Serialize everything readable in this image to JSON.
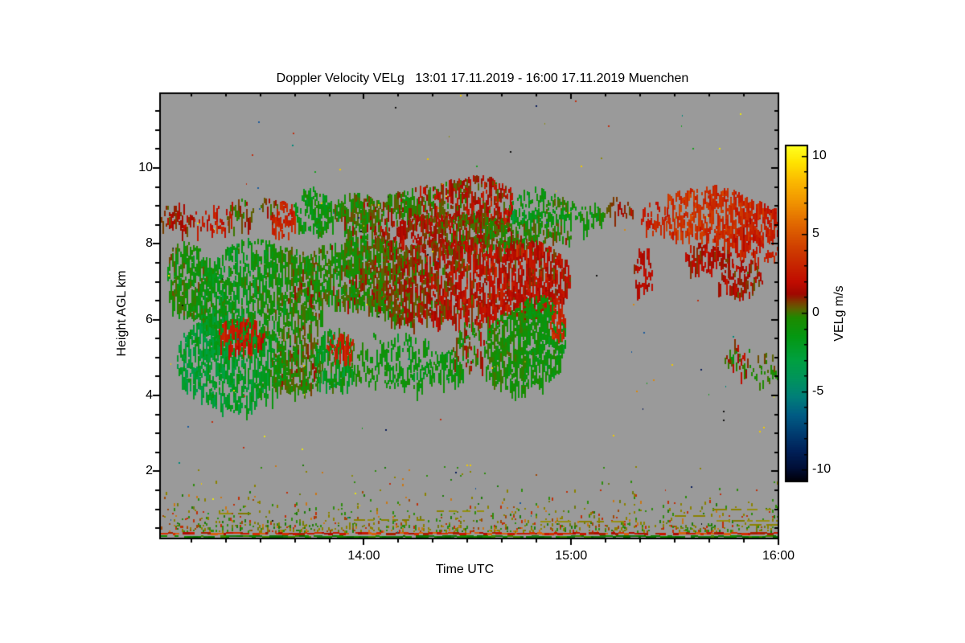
{
  "title": "Doppler Velocity VELg   13:01 17.11.2019 - 16:00 17.11.2019 Muenchen",
  "chart_data": {
    "type": "heatmap",
    "title": "Doppler Velocity VELg   13:01 17.11.2019 - 16:00 17.11.2019 Muenchen",
    "site": "Muenchen",
    "time_span": "13:01 17.11.2019 - 16:00 17.11.2019",
    "xlabel": "Time UTC",
    "ylabel": "Height AGL km",
    "x_range_hours": [
      13.0167,
      16.0
    ],
    "x_ticks": [
      {
        "hour": 14,
        "label": "14:00"
      },
      {
        "hour": 15,
        "label": "15:00"
      },
      {
        "hour": 16,
        "label": "16:00"
      }
    ],
    "x_minor_step_min": 10,
    "y_range_km": [
      0.25,
      11.95
    ],
    "y_ticks": [
      {
        "km": 2,
        "label": "2"
      },
      {
        "km": 4,
        "label": "4"
      },
      {
        "km": 6,
        "label": "6"
      },
      {
        "km": 8,
        "label": "8"
      },
      {
        "km": 10,
        "label": "10"
      }
    ],
    "y_minor_step_km": 0.5,
    "grid": false,
    "background_color": "#9A9A9A",
    "colorbar": {
      "label": "VELg m/s",
      "vmin": -10.7,
      "vmax": 10.6,
      "ticks": [
        {
          "v": 10,
          "label": "10"
        },
        {
          "v": 5,
          "label": "5"
        },
        {
          "v": 0,
          "label": "0"
        },
        {
          "v": -5,
          "label": "-5"
        },
        {
          "v": -10,
          "label": "-10"
        }
      ],
      "minor_step": 1,
      "stops": [
        [
          10.6,
          "#FFFF1E"
        ],
        [
          9.6,
          "#FFE400"
        ],
        [
          8.4,
          "#FBB900"
        ],
        [
          7.0,
          "#F09200"
        ],
        [
          5.6,
          "#E06600"
        ],
        [
          4.2,
          "#D04000"
        ],
        [
          3.0,
          "#C62400"
        ],
        [
          2.0,
          "#C00C00"
        ],
        [
          1.2,
          "#A00800"
        ],
        [
          0.7,
          "#7C3C00"
        ],
        [
          0.25,
          "#5A6400"
        ],
        [
          -0.3,
          "#1E8A00"
        ],
        [
          -1.5,
          "#049812"
        ],
        [
          -3.0,
          "#00A040"
        ],
        [
          -4.3,
          "#00925E"
        ],
        [
          -5.3,
          "#008078"
        ],
        [
          -6.5,
          "#005C84"
        ],
        [
          -7.7,
          "#003C70"
        ],
        [
          -8.8,
          "#002058"
        ],
        [
          -9.9,
          "#000E36"
        ],
        [
          -10.7,
          "#000008"
        ]
      ]
    },
    "cloud_regions": [
      {
        "t0": 13.02,
        "t1": 13.18,
        "h0": 8.35,
        "h1": 9.1,
        "v": 2.0,
        "sd": 1.0,
        "d": 0.45,
        "slope": 0
      },
      {
        "t0": 13.18,
        "t1": 13.36,
        "h0": 8.35,
        "h1": 8.95,
        "v": 1.5,
        "sd": 1.2,
        "d": 0.35,
        "slope": 0
      },
      {
        "t0": 13.34,
        "t1": 13.47,
        "h0": 8.45,
        "h1": 9.25,
        "v": 0.6,
        "sd": 1.5,
        "d": 0.5,
        "slope": 0
      },
      {
        "t0": 13.5,
        "t1": 13.58,
        "h0": 8.8,
        "h1": 9.3,
        "v": 1.0,
        "sd": 1.2,
        "d": 0.35,
        "slope": 0
      },
      {
        "t0": 13.55,
        "t1": 13.67,
        "h0": 8.35,
        "h1": 9.2,
        "v": 2.9,
        "sd": 0.8,
        "d": 0.75,
        "slope": 0
      },
      {
        "t0": 13.66,
        "t1": 13.85,
        "h0": 8.35,
        "h1": 9.4,
        "v": -0.9,
        "sd": 1.2,
        "d": 0.65,
        "slope": 0
      },
      {
        "t0": 13.85,
        "t1": 14.12,
        "h0": 8.3,
        "h1": 9.4,
        "v": 0.6,
        "sd": 1.5,
        "d": 0.7,
        "slope": 0
      },
      {
        "t0": 14.1,
        "t1": 14.72,
        "h0": 8.55,
        "h1": 9.68,
        "v": 0.0,
        "sd": 1.7,
        "d": 0.85,
        "slope": 0
      },
      {
        "t0": 14.05,
        "t1": 15.0,
        "h0": 7.9,
        "h1": 8.8,
        "v": 0.8,
        "sd": 1.4,
        "d": 0.82,
        "slope": 0
      },
      {
        "t0": 14.7,
        "t1": 15.02,
        "h0": 8.5,
        "h1": 9.45,
        "v": -0.4,
        "sd": 1.5,
        "d": 0.7,
        "slope": 0
      },
      {
        "t0": 15.02,
        "t1": 15.16,
        "h0": 8.45,
        "h1": 9.25,
        "v": -0.5,
        "sd": 1.3,
        "d": 0.4,
        "slope": 0
      },
      {
        "t0": 15.17,
        "t1": 15.3,
        "h0": 8.75,
        "h1": 9.25,
        "v": 1.3,
        "sd": 0.9,
        "d": 0.18,
        "slope": 0
      },
      {
        "t0": 15.33,
        "t1": 15.47,
        "h0": 8.3,
        "h1": 9.25,
        "v": 2.0,
        "sd": 1.1,
        "d": 0.45,
        "slope": 0
      },
      {
        "t0": 15.45,
        "t1": 16.0,
        "h0": 8.0,
        "h1": 9.5,
        "v": 2.6,
        "sd": 1.2,
        "d": 0.9,
        "slope": 0
      },
      {
        "t0": 15.55,
        "t1": 15.78,
        "h0": 7.4,
        "h1": 8.1,
        "v": 2.2,
        "sd": 1.0,
        "d": 0.5,
        "slope": 0
      },
      {
        "t0": 15.8,
        "t1": 16.0,
        "h0": 7.55,
        "h1": 8.15,
        "v": 2.0,
        "sd": 1.0,
        "d": 0.45,
        "slope": 0
      },
      {
        "t0": 15.7,
        "t1": 15.92,
        "h0": 6.7,
        "h1": 7.65,
        "v": 1.2,
        "sd": 1.0,
        "d": 0.5,
        "slope": 0
      },
      {
        "t0": 13.05,
        "t1": 13.34,
        "h0": 6.4,
        "h1": 8.3,
        "v": -0.3,
        "sd": 1.3,
        "d": 0.6,
        "slope": -0.9
      },
      {
        "t0": 13.2,
        "t1": 13.8,
        "h0": 5.3,
        "h1": 7.9,
        "v": -0.4,
        "sd": 1.4,
        "d": 0.8,
        "slope": 0
      },
      {
        "t0": 13.72,
        "t1": 15.0,
        "h0": 6.1,
        "h1": 8.25,
        "v": 0.7,
        "sd": 1.5,
        "d": 0.92,
        "slope": 0
      },
      {
        "t0": 14.58,
        "t1": 14.97,
        "h0": 4.1,
        "h1": 6.6,
        "v": -1.2,
        "sd": 1.0,
        "d": 0.7,
        "slope": 0
      },
      {
        "t0": 14.9,
        "t1": 14.97,
        "h0": 5.4,
        "h1": 6.4,
        "v": 2.6,
        "sd": 0.8,
        "d": 0.5,
        "slope": 0
      },
      {
        "t0": 15.3,
        "t1": 15.39,
        "h0": 6.8,
        "h1": 7.85,
        "v": 0.9,
        "sd": 0.8,
        "d": 0.55,
        "slope": 0
      },
      {
        "t0": 13.1,
        "t1": 13.62,
        "h0": 3.85,
        "h1": 6.1,
        "v": -1.6,
        "sd": 1.2,
        "d": 0.85,
        "slope": 0
      },
      {
        "t0": 13.3,
        "t1": 13.52,
        "h0": 5.3,
        "h1": 6.05,
        "v": 2.5,
        "sd": 0.9,
        "d": 0.5,
        "slope": 0
      },
      {
        "t0": 13.55,
        "t1": 13.8,
        "h0": 4.2,
        "h1": 5.7,
        "v": -0.9,
        "sd": 1.3,
        "d": 0.6,
        "slope": 0
      },
      {
        "t0": 13.76,
        "t1": 13.95,
        "h0": 4.35,
        "h1": 5.65,
        "v": -0.5,
        "sd": 1.8,
        "d": 0.6,
        "slope": 0
      },
      {
        "t0": 13.82,
        "t1": 13.95,
        "h0": 5.05,
        "h1": 5.62,
        "v": 2.8,
        "sd": 0.7,
        "d": 0.55,
        "slope": 0
      },
      {
        "t0": 13.95,
        "t1": 14.33,
        "h0": 4.25,
        "h1": 5.55,
        "v": -1.1,
        "sd": 0.9,
        "d": 0.42,
        "slope": 0
      },
      {
        "t0": 14.32,
        "t1": 14.48,
        "h0": 4.4,
        "h1": 5.25,
        "v": -1.3,
        "sd": 0.8,
        "d": 0.55,
        "slope": 0
      },
      {
        "t0": 14.43,
        "t1": 14.58,
        "h0": 4.8,
        "h1": 5.9,
        "v": 0.4,
        "sd": 1.8,
        "d": 0.5,
        "slope": 0
      },
      {
        "t0": 15.74,
        "t1": 15.86,
        "h0": 4.5,
        "h1": 5.45,
        "v": 0.3,
        "sd": 2.3,
        "d": 0.5,
        "slope": 0
      },
      {
        "t0": 15.86,
        "t1": 16.0,
        "h0": 4.2,
        "h1": 5.1,
        "v": -0.8,
        "sd": 0.9,
        "d": 0.28,
        "slope": 0
      }
    ],
    "dash_lines": [
      {
        "t0": 13.3,
        "t1": 13.44,
        "h": 0.9
      },
      {
        "t0": 13.95,
        "t1": 14.3,
        "h": 0.74
      },
      {
        "t0": 14.35,
        "t1": 14.55,
        "h": 0.98
      },
      {
        "t0": 14.85,
        "t1": 15.22,
        "h": 0.7
      },
      {
        "t0": 15.5,
        "t1": 15.62,
        "h": 0.85
      },
      {
        "t0": 15.7,
        "t1": 16.0,
        "h": 0.72
      },
      {
        "t0": 15.68,
        "t1": 15.95,
        "h": 1.02
      },
      {
        "t0": 15.86,
        "t1": 16.0,
        "h": 0.62
      }
    ],
    "dash_color": "#8A8200",
    "surface_stripes": [
      {
        "name": "red-clutter-stripe",
        "h": 0.385,
        "coverage": 0.88,
        "colors": [
          "#C81800",
          "#D43000",
          "#B00C00",
          "#D86010",
          "#A82000"
        ]
      },
      {
        "name": "green-clutter-stripe",
        "h": 0.285,
        "coverage": 0.92,
        "colors": [
          "#128A00",
          "#0C7A00",
          "#3C8C00",
          "#187812",
          "#0A6E00"
        ]
      }
    ],
    "floor_noise": {
      "h_top": 1.75,
      "h_bottom": 0.45,
      "colors": [
        [
          "#8A8200",
          0.3
        ],
        [
          "#6E7A10",
          0.1
        ],
        [
          "#2E8C0E",
          0.22
        ],
        [
          "#1E7A0A",
          0.08
        ],
        [
          "#C03008",
          0.12
        ],
        [
          "#C87818",
          0.1
        ],
        [
          "#A04808",
          0.08
        ]
      ]
    },
    "speckles": {
      "count": 130,
      "colors": [
        "#E8E410",
        "#F0C800",
        "#D88810",
        "#C03010",
        "#18A020",
        "#00887A",
        "#1A5A9A",
        "#0A1E5A",
        "#101010",
        "#8A8A10"
      ]
    }
  },
  "seed": 1337
}
